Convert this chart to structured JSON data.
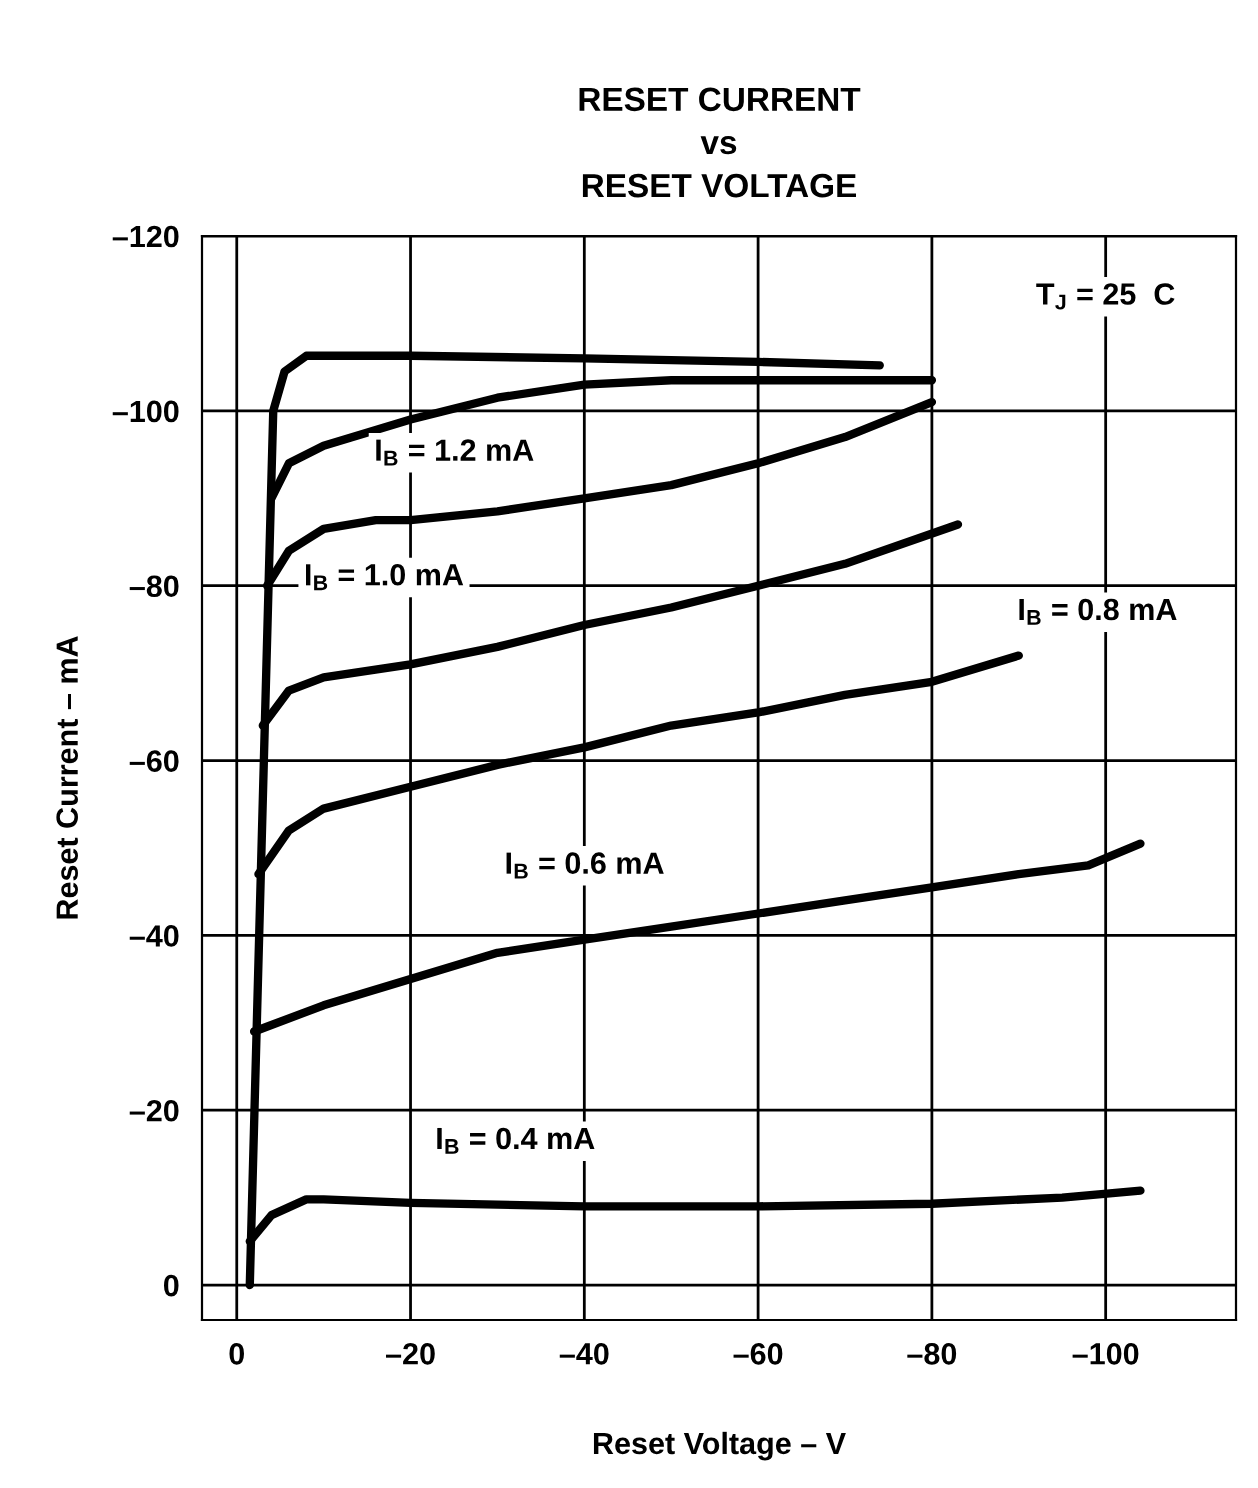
{
  "chart_data": {
    "type": "line",
    "title": "RESET CURRENT\nvs\nRESET VOLTAGE",
    "xlabel": "Reset Voltage – V",
    "ylabel": "Reset Current – mA",
    "xlim": [
      4,
      -115
    ],
    "ylim": [
      4,
      -120
    ],
    "xticks": [
      0,
      {
        "value": -20,
        "label": "–20"
      },
      {
        "value": -40,
        "label": "–40"
      },
      {
        "value": -60,
        "label": "–60"
      },
      {
        "value": -80,
        "label": "–80"
      },
      {
        "value": -100,
        "label": "–100"
      }
    ],
    "yticks": [
      0,
      {
        "value": -20,
        "label": "–20"
      },
      {
        "value": -40,
        "label": "–40"
      },
      {
        "value": -60,
        "label": "–60"
      },
      {
        "value": -80,
        "label": "–80"
      },
      {
        "value": -100,
        "label": "–100"
      },
      {
        "value": -120,
        "label": "–120"
      }
    ],
    "grid": true,
    "marker": "none",
    "line_style": "solid",
    "series": [
      {
        "color": "#000000",
        "x": [
          -1.5,
          -4.2,
          -5.5,
          -8,
          -20,
          -40,
          -60,
          -74
        ],
        "values": [
          0,
          -100,
          -104.5,
          -106.3,
          -106.3,
          -106,
          -105.6,
          -105.2
        ]
      },
      {
        "color": "#000000",
        "x": [
          -4,
          -6,
          -10,
          -20,
          -30,
          -40,
          -50,
          -80
        ],
        "values": [
          -90,
          -94,
          -96,
          -99,
          -101.5,
          -103,
          -103.5,
          -103.5
        ]
      },
      {
        "color": "#000000",
        "x": [
          -3.5,
          -6,
          -10,
          -16,
          -20,
          -30,
          -40,
          -50,
          -60,
          -70,
          -80
        ],
        "values": [
          -80,
          -84,
          -86.5,
          -87.5,
          -87.5,
          -88.5,
          -90,
          -91.5,
          -94,
          -97,
          -101
        ]
      },
      {
        "color": "#000000",
        "x": [
          -3,
          -6,
          -10,
          -20,
          -30,
          -40,
          -50,
          -60,
          -70,
          -83
        ],
        "values": [
          -64,
          -68,
          -69.5,
          -71,
          -73,
          -75.5,
          -77.5,
          -80,
          -82.5,
          -87
        ]
      },
      {
        "color": "#000000",
        "x": [
          -2.5,
          -6,
          -10,
          -20,
          -30,
          -40,
          -50,
          -60,
          -70,
          -80,
          -90
        ],
        "values": [
          -47,
          -52,
          -54.5,
          -57,
          -59.5,
          -61.5,
          -64,
          -65.5,
          -67.5,
          -69,
          -72
        ]
      },
      {
        "color": "#000000",
        "x": [
          -2,
          -10,
          -20,
          -30,
          -40,
          -50,
          -60,
          -70,
          -80,
          -90,
          -98,
          -104
        ],
        "values": [
          -29,
          -32,
          -35,
          -38,
          -39.5,
          -41,
          -42.5,
          -44,
          -45.5,
          -47,
          -48,
          -50.5
        ]
      },
      {
        "color": "#000000",
        "x": [
          -1.5,
          -4,
          -8,
          -10,
          -20,
          -40,
          -60,
          -80,
          -95,
          -104
        ],
        "values": [
          -5,
          -8,
          -9.8,
          -9.8,
          -9.4,
          -9,
          -9,
          -9.3,
          -10,
          -10.8
        ]
      }
    ],
    "annotations": [
      "T$_{J}$ = 25  C",
      "I$_{B}$ = 1.2 mA",
      "I$_{B}$ = 1.0 mA",
      "I$_{B}$ = 0.8 mA",
      "I$_{B}$ = 0.6 mA",
      "I$_{B}$ = 0.4 mA"
    ]
  }
}
